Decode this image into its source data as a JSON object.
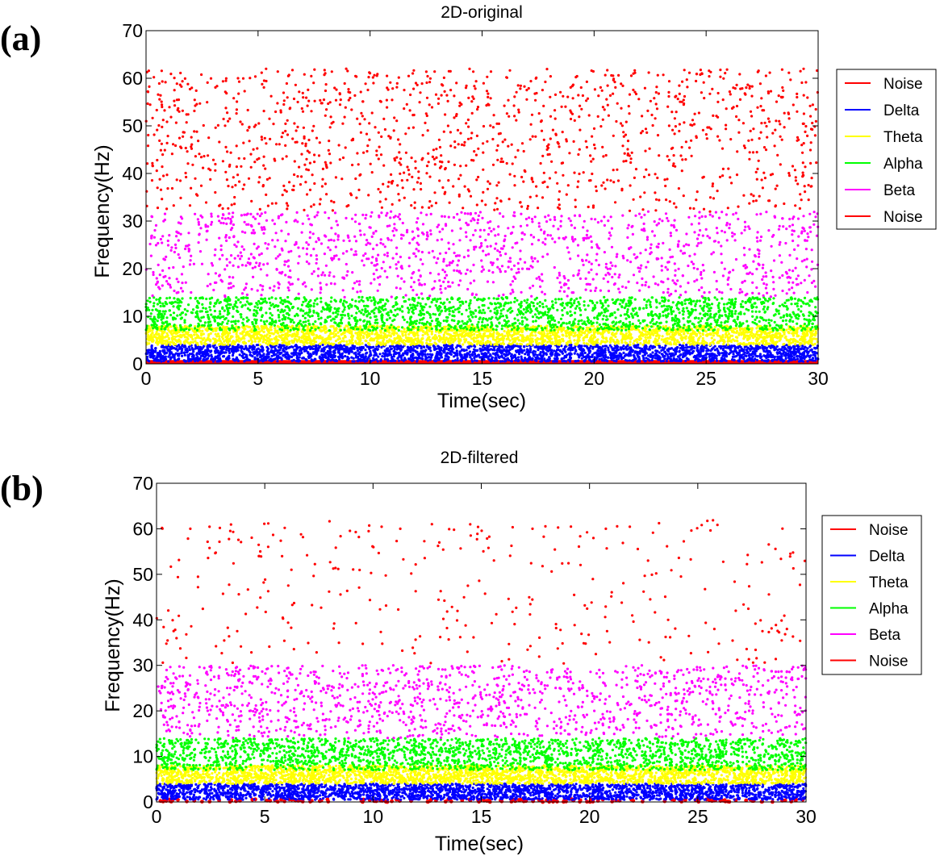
{
  "chart_data": [
    {
      "type": "scatter",
      "panel_label": "(a)",
      "title": "2D-original",
      "xlabel": "Time(sec)",
      "ylabel": "Frequency(Hz)",
      "xlim": [
        0,
        30
      ],
      "ylim": [
        0,
        70
      ],
      "xticks": [
        0,
        5,
        10,
        15,
        20,
        25,
        30
      ],
      "yticks": [
        0,
        10,
        20,
        30,
        40,
        50,
        60,
        70
      ],
      "legend": [
        "Noise",
        "Delta",
        "Theta",
        "Alpha",
        "Beta",
        "Noise"
      ],
      "legend_position": "right",
      "series": [
        {
          "name": "Noise",
          "color": "#ff0000",
          "band": [
            0,
            0.8
          ],
          "density": "solid-line"
        },
        {
          "name": "Delta",
          "color": "#0000ff",
          "band": [
            0.5,
            4
          ],
          "density": "very high"
        },
        {
          "name": "Theta",
          "color": "#ffff00",
          "band": [
            4,
            8
          ],
          "density": "very high"
        },
        {
          "name": "Alpha",
          "color": "#00ff00",
          "band": [
            7,
            14
          ],
          "density": "high"
        },
        {
          "name": "Beta",
          "color": "#ff00ff",
          "band": [
            14,
            32
          ],
          "density": "medium"
        },
        {
          "name": "Noise",
          "color": "#ff0000",
          "band": [
            32,
            62
          ],
          "density": "medium"
        }
      ]
    },
    {
      "type": "scatter",
      "panel_label": "(b)",
      "title": "2D-filtered",
      "xlabel": "Time(sec)",
      "ylabel": "Frequency(Hz)",
      "xlim": [
        0,
        30
      ],
      "ylim": [
        0,
        70
      ],
      "xticks": [
        0,
        5,
        10,
        15,
        20,
        25,
        30
      ],
      "yticks": [
        0,
        10,
        20,
        30,
        40,
        50,
        60,
        70
      ],
      "legend": [
        "Noise",
        "Delta",
        "Theta",
        "Alpha",
        "Beta",
        "Noise"
      ],
      "legend_position": "right",
      "series": [
        {
          "name": "Noise",
          "color": "#ff0000",
          "band": [
            0,
            0.6
          ],
          "density": "sparse-line"
        },
        {
          "name": "Delta",
          "color": "#0000ff",
          "band": [
            0.5,
            4
          ],
          "density": "very high"
        },
        {
          "name": "Theta",
          "color": "#ffff00",
          "band": [
            4,
            8
          ],
          "density": "very high"
        },
        {
          "name": "Alpha",
          "color": "#00ff00",
          "band": [
            7,
            14
          ],
          "density": "high"
        },
        {
          "name": "Beta",
          "color": "#ff00ff",
          "band": [
            14,
            30
          ],
          "density": "medium"
        },
        {
          "name": "Noise",
          "color": "#ff0000",
          "band": [
            30,
            62
          ],
          "density": "sparse"
        }
      ]
    }
  ]
}
